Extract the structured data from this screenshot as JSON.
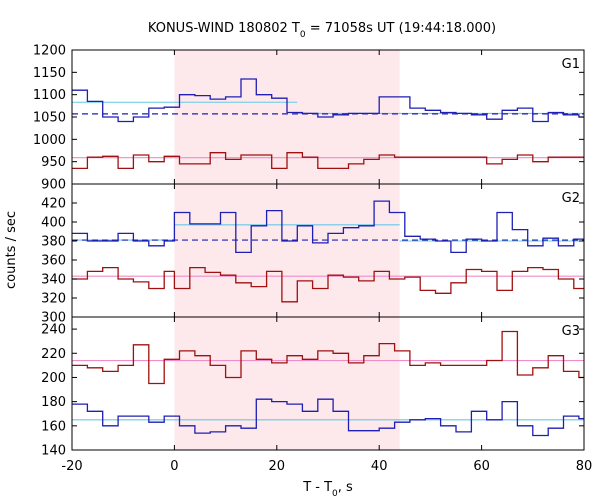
{
  "chart_data": {
    "type": "line",
    "title": "KONUS-WIND 180802 T",
    "title_sub": "0",
    "title_rest": " = 71058s UT (19:44:18.000)",
    "xlabel": "T - T",
    "xlabel_sub": "0",
    "xlabel_rest": ", s",
    "ylabel": "counts / sec",
    "xlim": [
      -20,
      80
    ],
    "x_ticks": [
      -20,
      0,
      20,
      40,
      60,
      80
    ],
    "shaded_interval": [
      0,
      44
    ],
    "colors": {
      "blue_series": "#1f1fb3",
      "red_series": "#a01010",
      "fit_blue": "#66c8e8",
      "fit_red": "#f08cc8",
      "shade": "#fde8ec"
    },
    "panels": [
      {
        "label": "G1",
        "ylim": [
          900,
          1200
        ],
        "y_ticks": [
          900,
          950,
          1000,
          1050,
          1100,
          1150,
          1200
        ],
        "series": [
          {
            "color_key": "blue_series",
            "edges": [
              -20,
              -17,
              -14,
              -11,
              -8,
              -5,
              -2,
              1,
              4,
              7,
              10,
              13,
              16,
              19,
              22,
              25,
              28,
              31,
              34,
              37,
              40,
              43,
              46,
              49,
              52,
              55,
              58,
              61,
              64,
              67,
              70,
              73,
              76,
              79,
              80
            ],
            "values": [
              1110,
              1085,
              1050,
              1040,
              1050,
              1070,
              1072,
              1100,
              1098,
              1090,
              1095,
              1135,
              1100,
              1092,
              1060,
              1058,
              1050,
              1055,
              1058,
              1058,
              1095,
              1095,
              1070,
              1065,
              1060,
              1058,
              1055,
              1045,
              1065,
              1070,
              1040,
              1060,
              1055,
              1050
            ]
          },
          {
            "color_key": "red_series",
            "edges": [
              -20,
              -17,
              -14,
              -11,
              -8,
              -5,
              -2,
              1,
              4,
              7,
              10,
              13,
              16,
              19,
              22,
              25,
              28,
              31,
              34,
              37,
              40,
              43,
              46,
              49,
              52,
              55,
              58,
              61,
              64,
              67,
              70,
              73,
              76,
              79,
              80
            ],
            "values": [
              935,
              960,
              962,
              935,
              965,
              950,
              962,
              945,
              945,
              970,
              955,
              965,
              965,
              935,
              970,
              960,
              935,
              935,
              945,
              955,
              965,
              960,
              960,
              960,
              960,
              960,
              960,
              945,
              955,
              965,
              950,
              960,
              960,
              960
            ]
          }
        ],
        "fits": [
          {
            "color_key": "fit_blue",
            "x": [
              -20,
              24
            ],
            "y": 1083,
            "dashed": false
          },
          {
            "color_key": "fit_blue",
            "x": [
              24,
              80
            ],
            "y": 1058,
            "dashed": false
          },
          {
            "color_key": "blue_series",
            "x": [
              -20,
              80
            ],
            "y": 1057,
            "dashed": true
          },
          {
            "color_key": "fit_red",
            "x": [
              -20,
              80
            ],
            "y": 959,
            "dashed": false
          }
        ]
      },
      {
        "label": "G2",
        "ylim": [
          300,
          440
        ],
        "y_ticks": [
          300,
          320,
          340,
          360,
          380,
          400,
          420
        ],
        "series": [
          {
            "color_key": "blue_series",
            "edges": [
              -20,
              -17,
              -14,
              -11,
              -8,
              -5,
              -2,
              0,
              3,
              6,
              9,
              12,
              15,
              18,
              21,
              24,
              27,
              30,
              33,
              36,
              39,
              42,
              45,
              48,
              51,
              54,
              57,
              60,
              63,
              66,
              69,
              72,
              75,
              78,
              80
            ],
            "values": [
              388,
              380,
              380,
              388,
              380,
              375,
              380,
              410,
              398,
              398,
              410,
              368,
              396,
              412,
              380,
              396,
              378,
              388,
              394,
              396,
              422,
              410,
              385,
              382,
              380,
              368,
              382,
              380,
              410,
              392,
              375,
              383,
              375,
              382
            ]
          },
          {
            "color_key": "red_series",
            "edges": [
              -20,
              -17,
              -14,
              -11,
              -8,
              -5,
              -2,
              0,
              3,
              6,
              9,
              12,
              15,
              18,
              21,
              24,
              27,
              30,
              33,
              36,
              39,
              42,
              45,
              48,
              51,
              54,
              57,
              60,
              63,
              66,
              69,
              72,
              75,
              78,
              80
            ],
            "values": [
              340,
              348,
              352,
              340,
              337,
              330,
              348,
              330,
              352,
              347,
              344,
              336,
              332,
              348,
              316,
              338,
              330,
              344,
              342,
              338,
              348,
              340,
              342,
              328,
              325,
              336,
              350,
              348,
              328,
              348,
              352,
              350,
              340,
              330
            ]
          }
        ],
        "fits": [
          {
            "color_key": "fit_blue",
            "x": [
              -20,
              0
            ],
            "y": 381,
            "dashed": false
          },
          {
            "color_key": "fit_blue",
            "x": [
              0,
              44
            ],
            "y": 397,
            "dashed": false
          },
          {
            "color_key": "fit_blue",
            "x": [
              44,
              80
            ],
            "y": 380,
            "dashed": false
          },
          {
            "color_key": "blue_series",
            "x": [
              -20,
              80
            ],
            "y": 381,
            "dashed": true
          },
          {
            "color_key": "fit_red",
            "x": [
              -20,
              80
            ],
            "y": 343,
            "dashed": false
          }
        ]
      },
      {
        "label": "G3",
        "ylim": [
          140,
          250
        ],
        "y_ticks": [
          140,
          160,
          180,
          200,
          220,
          240
        ],
        "series": [
          {
            "color_key": "red_series",
            "edges": [
              -20,
              -17,
              -14,
              -11,
              -8,
              -5,
              -2,
              1,
              4,
              7,
              10,
              13,
              16,
              19,
              22,
              25,
              28,
              31,
              34,
              37,
              40,
              43,
              46,
              49,
              52,
              55,
              58,
              61,
              64,
              67,
              70,
              73,
              76,
              79,
              80
            ],
            "values": [
              210,
              208,
              205,
              210,
              227,
              195,
              215,
              222,
              218,
              210,
              200,
              222,
              215,
              212,
              218,
              215,
              222,
              220,
              212,
              218,
              228,
              222,
              210,
              212,
              210,
              210,
              210,
              214,
              238,
              202,
              208,
              218,
              205,
              200
            ]
          },
          {
            "color_key": "blue_series",
            "edges": [
              -20,
              -17,
              -14,
              -11,
              -8,
              -5,
              -2,
              1,
              4,
              7,
              10,
              13,
              16,
              19,
              22,
              25,
              28,
              31,
              34,
              37,
              40,
              43,
              46,
              49,
              52,
              55,
              58,
              61,
              64,
              67,
              70,
              73,
              76,
              79,
              80
            ],
            "values": [
              178,
              172,
              160,
              168,
              168,
              163,
              168,
              160,
              154,
              155,
              160,
              158,
              182,
              180,
              178,
              172,
              182,
              172,
              156,
              156,
              158,
              163,
              165,
              166,
              160,
              155,
              172,
              165,
              180,
              160,
              152,
              158,
              168,
              166
            ]
          }
        ],
        "fits": [
          {
            "color_key": "fit_red",
            "x": [
              -20,
              80
            ],
            "y": 214,
            "dashed": false
          },
          {
            "color_key": "fit_blue",
            "x": [
              -20,
              80
            ],
            "y": 165,
            "dashed": false
          }
        ]
      }
    ]
  }
}
